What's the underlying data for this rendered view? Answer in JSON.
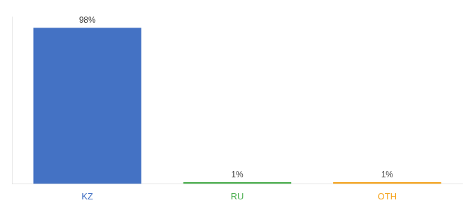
{
  "chart_data": {
    "type": "bar",
    "categories": [
      "KZ",
      "RU",
      "OTH"
    ],
    "values": [
      98,
      1,
      1
    ],
    "value_labels": [
      "98%",
      "1%",
      "1%"
    ],
    "colors": [
      "#4472c4",
      "#4caf50",
      "#f5a623"
    ],
    "ylim": [
      0,
      105
    ],
    "grid": false,
    "data_labels": true,
    "tick_labels": "x"
  }
}
